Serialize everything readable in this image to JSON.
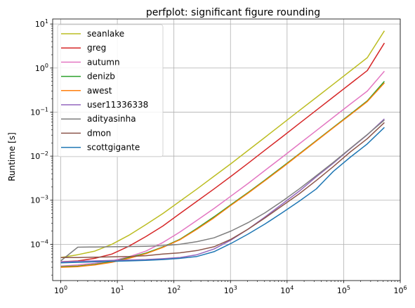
{
  "chart_data": {
    "type": "line",
    "title": "perfplot: significant figure rounding",
    "xlabel": "",
    "ylabel": "Runtime [s]",
    "xscale": "log",
    "yscale": "log",
    "xlim": [
      0.72,
      1000000
    ],
    "ylim": [
      1.5e-05,
      13
    ],
    "grid": true,
    "legend_position": "top-left",
    "x_ticks": [
      {
        "value": 1,
        "base": "10",
        "exp": "0"
      },
      {
        "value": 10,
        "base": "10",
        "exp": "1"
      },
      {
        "value": 100,
        "base": "10",
        "exp": "2"
      },
      {
        "value": 1000,
        "base": "10",
        "exp": "3"
      },
      {
        "value": 10000,
        "base": "10",
        "exp": "4"
      },
      {
        "value": 100000,
        "base": "10",
        "exp": "5"
      },
      {
        "value": 1000000,
        "base": "10",
        "exp": "6"
      }
    ],
    "y_ticks": [
      {
        "value": 0.0001,
        "base": "10",
        "exp": "−4"
      },
      {
        "value": 0.001,
        "base": "10",
        "exp": "−3"
      },
      {
        "value": 0.01,
        "base": "10",
        "exp": "−2"
      },
      {
        "value": 0.1,
        "base": "10",
        "exp": "−1"
      },
      {
        "value": 1,
        "base": "10",
        "exp": "0"
      },
      {
        "value": 10,
        "base": "10",
        "exp": "1"
      }
    ],
    "x": [
      1,
      2,
      4,
      8,
      16,
      32,
      64,
      128,
      256,
      512,
      1024,
      2048,
      4096,
      8192,
      16384,
      32768,
      65536,
      131072,
      262144,
      524288
    ],
    "series": [
      {
        "name": "seanlake",
        "color": "#bcbd22",
        "values": [
          5e-05,
          5.8e-05,
          7e-05,
          0.0001,
          0.00016,
          0.00028,
          0.0005,
          0.00095,
          0.0018,
          0.0035,
          0.0068,
          0.0135,
          0.027,
          0.054,
          0.108,
          0.215,
          0.43,
          0.86,
          1.72,
          7.0
        ]
      },
      {
        "name": "greg",
        "color": "#d62728",
        "values": [
          4e-05,
          4.2e-05,
          4.8e-05,
          6e-05,
          9e-05,
          0.00015,
          0.00026,
          0.0005,
          0.00095,
          0.0018,
          0.0035,
          0.0069,
          0.0138,
          0.0275,
          0.055,
          0.11,
          0.22,
          0.44,
          0.88,
          3.7
        ]
      },
      {
        "name": "autumn",
        "color": "#e377c2",
        "values": [
          3.2e-05,
          3.4e-05,
          3.7e-05,
          4.2e-05,
          5.2e-05,
          7e-05,
          0.00011,
          0.00019,
          0.00035,
          0.00065,
          0.00125,
          0.0024,
          0.0048,
          0.0095,
          0.019,
          0.038,
          0.076,
          0.152,
          0.3,
          0.85
        ]
      },
      {
        "name": "denizb",
        "color": "#2ca02c",
        "values": [
          3.1e-05,
          3.2e-05,
          3.5e-05,
          4e-05,
          5e-05,
          6.3e-05,
          8.7e-05,
          0.00013,
          0.00023,
          0.00042,
          0.0008,
          0.0015,
          0.0029,
          0.0057,
          0.0113,
          0.0225,
          0.045,
          0.09,
          0.18,
          0.5
        ]
      },
      {
        "name": "awest",
        "color": "#ff7f0e",
        "values": [
          3e-05,
          3.1e-05,
          3.4e-05,
          3.9e-05,
          4.8e-05,
          6.1e-05,
          8.5e-05,
          0.000127,
          0.00022,
          0.0004,
          0.00077,
          0.00145,
          0.0028,
          0.0055,
          0.011,
          0.022,
          0.044,
          0.087,
          0.174,
          0.46
        ]
      },
      {
        "name": "user11336338",
        "color": "#9467bd",
        "values": [
          4e-05,
          4.1e-05,
          4.2e-05,
          4.3e-05,
          4.4e-05,
          4.5e-05,
          4.7e-05,
          5e-05,
          5.8e-05,
          7.8e-05,
          0.000125,
          0.00022,
          0.00042,
          0.00082,
          0.0016,
          0.0034,
          0.0069,
          0.0147,
          0.0305,
          0.07
        ]
      },
      {
        "name": "adityasinha",
        "color": "#7f7f7f",
        "values": [
          4.2e-05,
          8.6e-05,
          8.7e-05,
          8.8e-05,
          8.9e-05,
          9e-05,
          9.3e-05,
          0.0001,
          0.000115,
          0.00014,
          0.0002,
          0.00031,
          0.00052,
          0.00095,
          0.0018,
          0.0036,
          0.0072,
          0.015,
          0.031,
          0.066
        ]
      },
      {
        "name": "dmon",
        "color": "#8c564b",
        "values": [
          5e-05,
          5e-05,
          5.1e-05,
          5.2e-05,
          5.3e-05,
          5.5e-05,
          6e-05,
          6.4e-05,
          7.2e-05,
          8.8e-05,
          0.00013,
          0.00022,
          0.0004,
          0.00075,
          0.0014,
          0.0028,
          0.0058,
          0.0125,
          0.025,
          0.058
        ]
      },
      {
        "name": "scottgigante",
        "color": "#1f77b4",
        "values": [
          3.8e-05,
          3.9e-05,
          4e-05,
          4.1e-05,
          4.2e-05,
          4.3e-05,
          4.5e-05,
          4.8e-05,
          5.3e-05,
          6.8e-05,
          0.000105,
          0.00017,
          0.00029,
          0.00052,
          0.00095,
          0.0018,
          0.0045,
          0.0095,
          0.019,
          0.045
        ]
      }
    ]
  }
}
